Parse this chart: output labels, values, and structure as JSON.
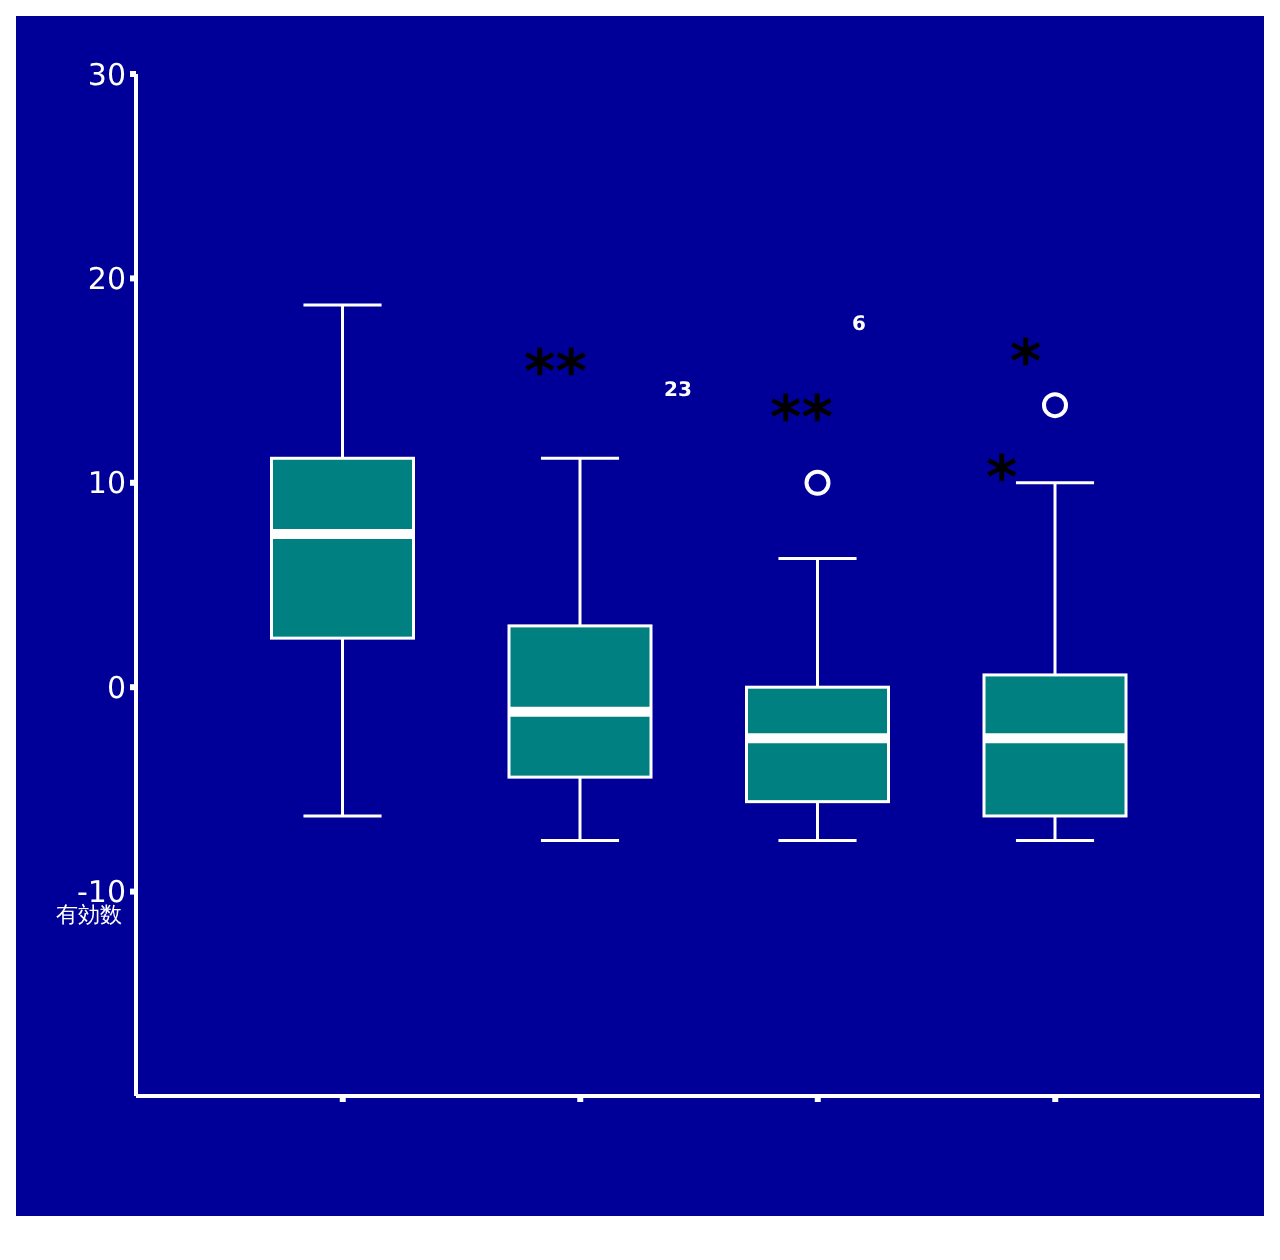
{
  "chart_data": {
    "type": "box",
    "ylabel": "有効数",
    "categories": [
      null,
      null,
      null,
      null
    ],
    "color": "#008080",
    "boxes": [
      {
        "low": -6.3,
        "q1": 2.4,
        "median": 7.5,
        "q3": 11.2,
        "high": 18.7
      },
      {
        "low": -7.5,
        "q1": -4.4,
        "median": -1.2,
        "q3": 3.0,
        "high": 11.2
      },
      {
        "low": -7.5,
        "q1": -5.6,
        "median": -2.5,
        "q3": 0.0,
        "high": 6.3,
        "outliers": [
          10.0
        ]
      },
      {
        "low": -7.5,
        "q1": -6.3,
        "median": -2.5,
        "q3": 0.6,
        "high": 10.0,
        "outliers": [
          13.8
        ]
      }
    ],
    "ylim": [
      -20,
      30
    ],
    "yticks": [
      -10,
      0,
      10,
      20,
      30
    ],
    "marker": "circle",
    "annotations": [
      "**",
      "**",
      "*",
      "*",
      "23",
      "6"
    ]
  }
}
